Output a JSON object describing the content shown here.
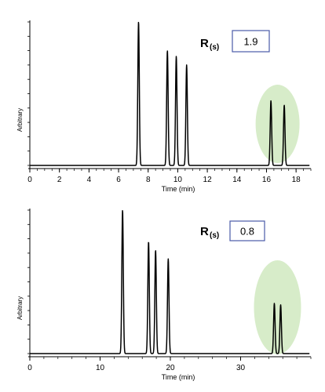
{
  "chart_data": [
    {
      "type": "line",
      "xlabel": "Time (min)",
      "ylabel": "Arbitrary",
      "xlim": [
        0,
        19
      ],
      "ylim": [
        0,
        1
      ],
      "xticks": [
        0,
        2,
        4,
        6,
        8,
        10,
        12,
        14,
        16,
        18
      ],
      "xtick_labels": [
        "0",
        "2",
        "4",
        "6",
        "8",
        "10",
        "12",
        "14",
        "16",
        "18"
      ],
      "peaks": [
        {
          "t": 7.35,
          "height": 1.0
        },
        {
          "t": 9.3,
          "height": 0.8
        },
        {
          "t": 9.9,
          "height": 0.76
        },
        {
          "t": 10.6,
          "height": 0.7
        },
        {
          "t": 16.3,
          "height": 0.45
        },
        {
          "t": 17.2,
          "height": 0.42
        }
      ],
      "annotation": {
        "label": "R",
        "subscript": "(s)",
        "value": "1.9"
      },
      "highlight": {
        "x_center": 16.75,
        "color": "#d7ecc9"
      },
      "grid": false
    },
    {
      "type": "line",
      "xlabel": "Time (min)",
      "ylabel": "Arbitrary",
      "xlim": [
        0,
        40
      ],
      "ylim": [
        0,
        1
      ],
      "xticks": [
        0,
        10,
        20,
        30
      ],
      "xtick_labels": [
        "0",
        "10",
        "20",
        "30"
      ],
      "peaks": [
        {
          "t": 13.2,
          "height": 1.0
        },
        {
          "t": 16.9,
          "height": 0.78
        },
        {
          "t": 17.9,
          "height": 0.72
        },
        {
          "t": 19.7,
          "height": 0.66
        },
        {
          "t": 34.8,
          "height": 0.35
        },
        {
          "t": 35.7,
          "height": 0.34
        }
      ],
      "annotation": {
        "label": "R",
        "subscript": "(s)",
        "value": "0.8"
      },
      "highlight": {
        "x_center": 35.25,
        "color": "#d7ecc9"
      },
      "grid": false
    }
  ]
}
